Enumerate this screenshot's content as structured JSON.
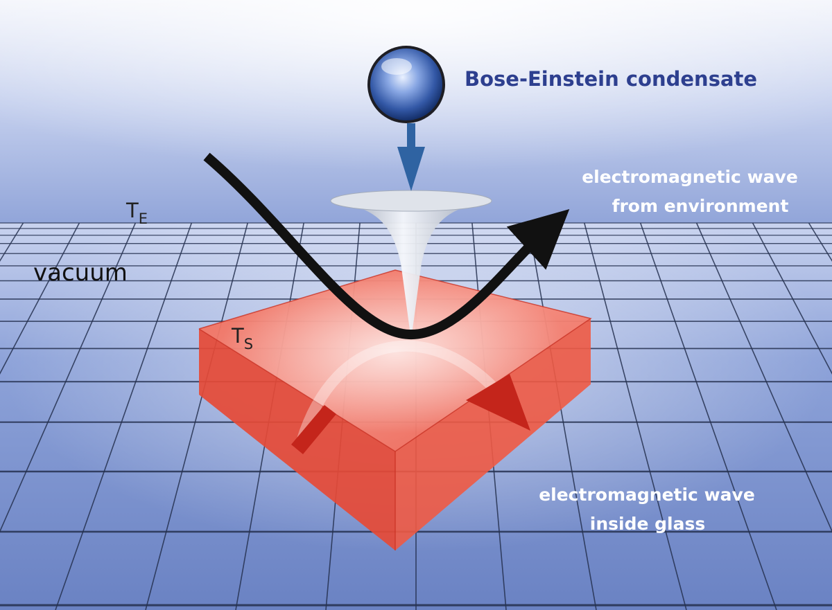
{
  "labels": {
    "condensate": "Bose-Einstein condensate",
    "wave_env_line1": "electromagnetic wave",
    "wave_env_line2": "from environment",
    "wave_glass_line1": "electromagnetic wave",
    "wave_glass_line2": "inside glass",
    "vacuum": "vacuum",
    "t_env_main": "T",
    "t_env_sub": "E",
    "t_surface_main": "T",
    "t_surface_sub": "S"
  },
  "colors": {
    "sky_top": "#f2f4fb",
    "sky_bottom": "#8fa3d8",
    "floor": "#7f96d0",
    "grid": "#24304f",
    "glass": "#f0523e",
    "glass_dark": "#d7392a",
    "condensate_blue": "#2f4f9a",
    "condensate_label": "#2d3f8f",
    "arrow_blue": "#2f63a2",
    "wave_black": "#111111",
    "white_text": "#ffffff"
  },
  "icons": {
    "condensate": "sphere-icon",
    "drop_arrow": "arrow-down-icon",
    "funnel": "funnel-icon",
    "wave_path": "curved-arrow-icon"
  }
}
